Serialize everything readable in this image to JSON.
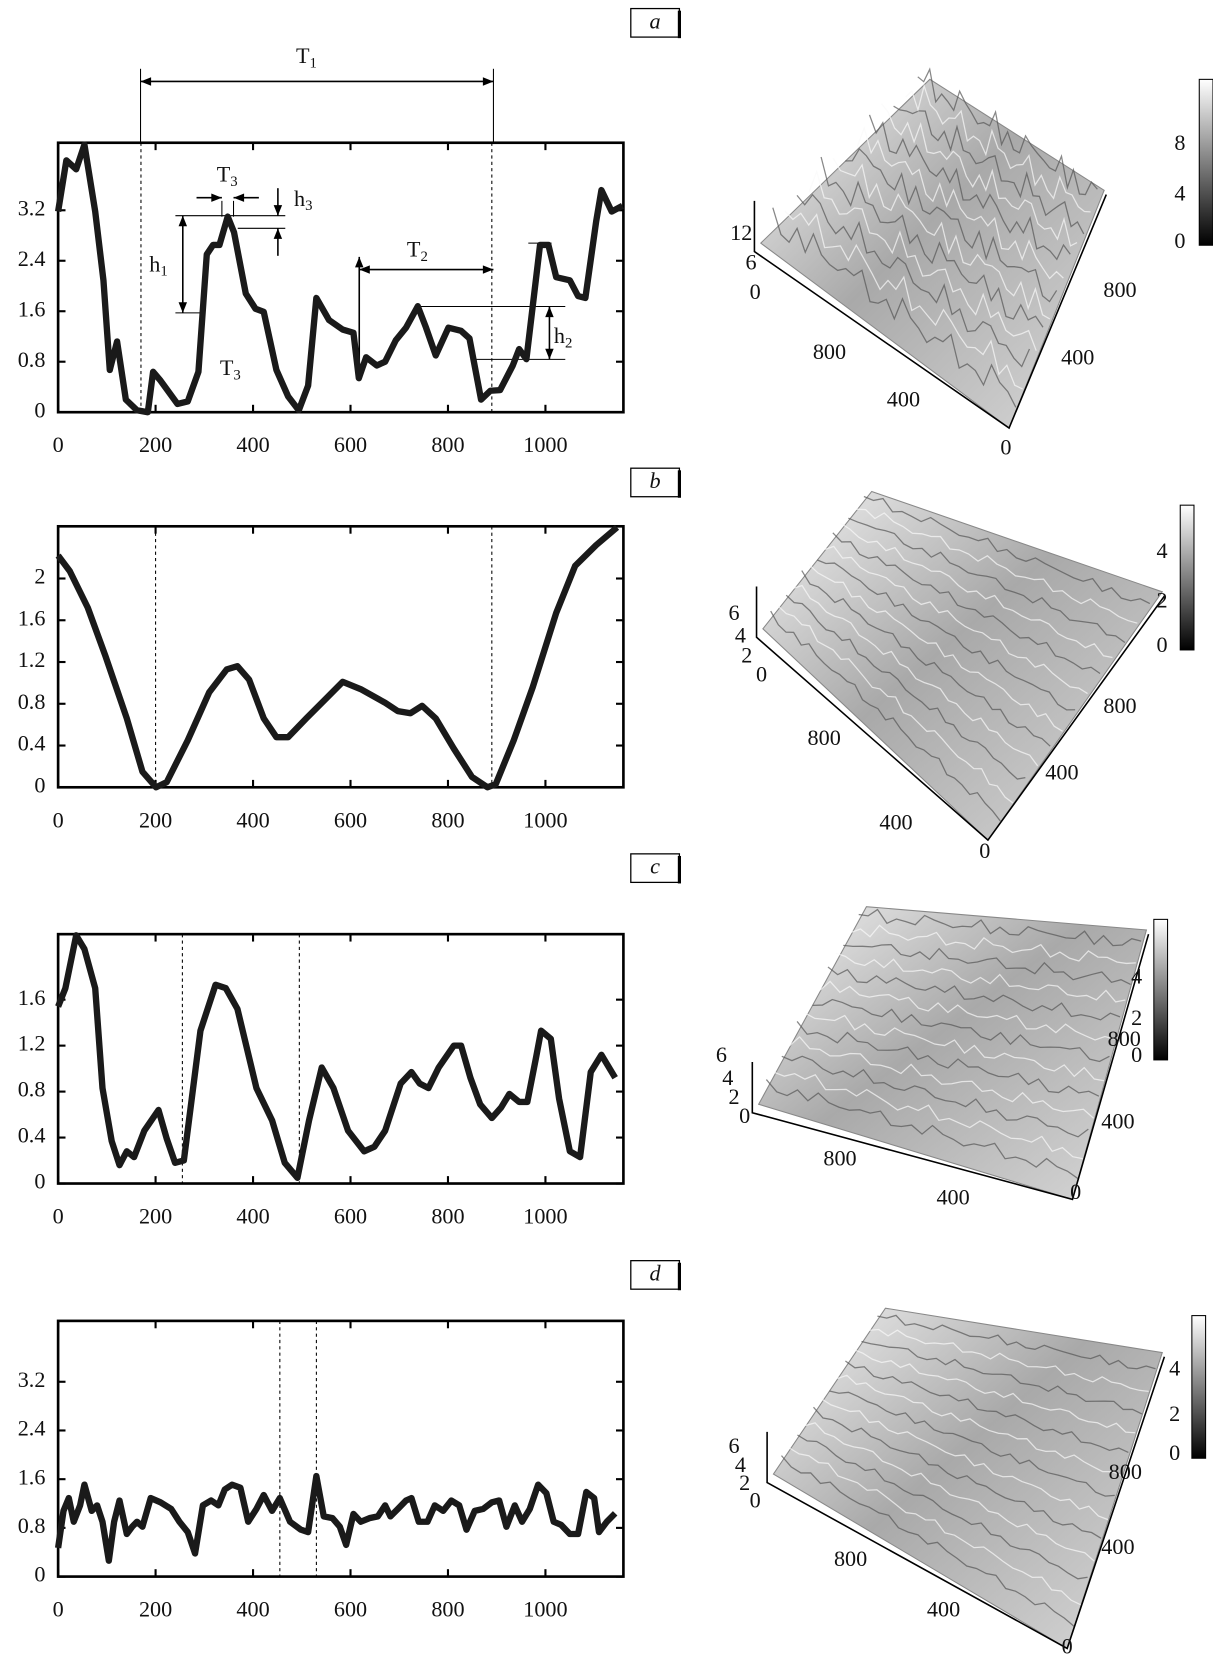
{
  "chart_data": [
    {
      "type": "line",
      "panel": "a",
      "x": [
        0,
        17,
        37,
        54,
        76,
        93,
        106,
        121,
        139,
        162,
        184,
        195,
        210,
        245,
        266,
        288,
        305,
        318,
        331,
        348,
        361,
        385,
        405,
        422,
        448,
        472,
        494,
        513,
        530,
        556,
        584,
        606,
        617,
        632,
        654,
        671,
        693,
        714,
        738,
        755,
        775,
        801,
        827,
        844,
        868,
        887,
        907,
        933,
        946,
        961,
        989,
        1006,
        1022,
        1050,
        1067,
        1082,
        1104,
        1115,
        1136,
        1158
      ],
      "values": [
        3.18,
        3.99,
        3.85,
        4.24,
        3.18,
        2.09,
        0.67,
        1.12,
        0.2,
        0.03,
        0,
        0.64,
        0.5,
        0.13,
        0.17,
        0.64,
        2.5,
        2.65,
        2.65,
        3.1,
        2.85,
        1.88,
        1.64,
        1.59,
        0.67,
        0.25,
        0.03,
        0.42,
        1.81,
        1.46,
        1.31,
        1.26,
        0.54,
        0.87,
        0.74,
        0.8,
        1.14,
        1.34,
        1.68,
        1.34,
        0.9,
        1.34,
        1.29,
        1.17,
        0.2,
        0.34,
        0.35,
        0.74,
        1.0,
        0.84,
        2.65,
        2.65,
        2.14,
        2.09,
        1.84,
        1.81,
        3.02,
        3.52,
        3.18,
        3.27
      ],
      "xlim": [
        0,
        1160
      ],
      "ylim": [
        0,
        4.27
      ],
      "xticks": [
        0,
        200,
        400,
        600,
        800,
        1000
      ],
      "yticks": [
        0,
        0.8,
        1.6,
        2.4,
        3.2
      ],
      "vlines": [
        170,
        890
      ],
      "annotations": [
        {
          "text": "T",
          "sub": "1"
        },
        {
          "text": "T",
          "sub": "3"
        },
        {
          "text": "h",
          "sub": "3"
        },
        {
          "text": "h",
          "sub": "1"
        },
        {
          "text": "T",
          "sub": "2"
        },
        {
          "text": "h",
          "sub": "2"
        },
        {
          "text": "T",
          "sub": "3"
        }
      ],
      "surface": {
        "z_ticks": [
          "12",
          "6",
          "0"
        ],
        "front_ticks": [
          "800",
          "400",
          "0"
        ],
        "side_ticks": [
          "800",
          "400"
        ],
        "colorbar_ticks": [
          "8",
          "4",
          "0"
        ]
      }
    },
    {
      "type": "line",
      "panel": "b",
      "x": [
        0,
        24,
        61,
        97,
        141,
        173,
        201,
        223,
        266,
        310,
        346,
        368,
        392,
        422,
        448,
        472,
        509,
        552,
        584,
        621,
        671,
        697,
        723,
        747,
        775,
        812,
        849,
        881,
        898,
        935,
        974,
        1022,
        1061,
        1104,
        1147
      ],
      "values": [
        2.22,
        2.07,
        1.72,
        1.26,
        0.66,
        0.15,
        0,
        0.05,
        0.45,
        0.91,
        1.13,
        1.16,
        1.03,
        0.66,
        0.48,
        0.48,
        0.66,
        0.86,
        1.01,
        0.94,
        0.81,
        0.73,
        0.71,
        0.78,
        0.66,
        0.37,
        0.1,
        0,
        0.03,
        0.45,
        0.96,
        1.67,
        2.12,
        2.32,
        2.49
      ],
      "xlim": [
        0,
        1160
      ],
      "ylim": [
        0,
        2.5
      ],
      "xticks": [
        0,
        200,
        400,
        600,
        800,
        1000
      ],
      "yticks": [
        0,
        0.4,
        0.8,
        1.2,
        1.6,
        2.0
      ],
      "vlines": [
        200,
        890
      ],
      "surface": {
        "z_ticks": [
          "6",
          "4",
          "2",
          "0"
        ],
        "front_ticks": [
          "800",
          "400",
          "0"
        ],
        "side_ticks": [
          "800",
          "400"
        ],
        "colorbar_ticks": [
          "4",
          "2",
          "0"
        ]
      }
    },
    {
      "type": "line",
      "panel": "c",
      "x": [
        0,
        15,
        37,
        54,
        76,
        91,
        110,
        126,
        141,
        156,
        177,
        206,
        223,
        240,
        258,
        292,
        323,
        344,
        368,
        407,
        439,
        465,
        491,
        515,
        541,
        565,
        595,
        628,
        649,
        671,
        703,
        725,
        742,
        760,
        781,
        812,
        827,
        846,
        866,
        890,
        909,
        926,
        946,
        963,
        981,
        991,
        1011,
        1028,
        1050,
        1071,
        1093,
        1115,
        1143
      ],
      "values": [
        1.54,
        1.7,
        2.16,
        2.04,
        1.7,
        0.83,
        0.37,
        0.16,
        0.28,
        0.23,
        0.46,
        0.64,
        0.39,
        0.18,
        0.2,
        1.33,
        1.73,
        1.7,
        1.52,
        0.83,
        0.55,
        0.18,
        0.05,
        0.55,
        1.01,
        0.83,
        0.46,
        0.28,
        0.32,
        0.46,
        0.87,
        0.97,
        0.87,
        0.83,
        1.01,
        1.2,
        1.2,
        0.92,
        0.69,
        0.57,
        0.66,
        0.78,
        0.71,
        0.71,
        1.1,
        1.33,
        1.26,
        0.74,
        0.28,
        0.23,
        0.97,
        1.12,
        0.92
      ],
      "xlim": [
        0,
        1160
      ],
      "ylim": [
        0,
        2.17
      ],
      "xticks": [
        0,
        200,
        400,
        600,
        800,
        1000
      ],
      "yticks": [
        0,
        0.4,
        0.8,
        1.2,
        1.6
      ],
      "vlines": [
        255,
        495
      ],
      "surface": {
        "z_ticks": [
          "6",
          "4",
          "2",
          "0"
        ],
        "front_ticks": [
          "800",
          "400",
          "0"
        ],
        "side_ticks": [
          "800",
          "400"
        ],
        "colorbar_ticks": [
          "4",
          "2",
          "0"
        ]
      }
    },
    {
      "type": "line",
      "panel": "d",
      "x": [
        0,
        11,
        22,
        32,
        45,
        54,
        69,
        80,
        91,
        104,
        115,
        126,
        141,
        152,
        162,
        173,
        190,
        210,
        232,
        249,
        266,
        281,
        297,
        314,
        329,
        342,
        357,
        374,
        390,
        407,
        422,
        439,
        455,
        476,
        498,
        513,
        530,
        545,
        563,
        578,
        591,
        606,
        621,
        639,
        656,
        671,
        682,
        697,
        714,
        725,
        740,
        758,
        773,
        790,
        807,
        823,
        838,
        855,
        872,
        890,
        905,
        920,
        937,
        952,
        968,
        985,
        1002,
        1017,
        1032,
        1050,
        1067,
        1084,
        1100,
        1110,
        1126,
        1143
      ],
      "values": [
        0.47,
        1.08,
        1.29,
        0.9,
        1.17,
        1.51,
        1.08,
        1.17,
        0.9,
        0.26,
        0.9,
        1.25,
        0.7,
        0.82,
        0.9,
        0.82,
        1.29,
        1.22,
        1.11,
        0.9,
        0.73,
        0.38,
        1.17,
        1.25,
        1.17,
        1.43,
        1.51,
        1.46,
        0.9,
        1.11,
        1.34,
        1.08,
        1.29,
        0.9,
        0.77,
        0.73,
        1.65,
        0.99,
        0.96,
        0.82,
        0.52,
        1.03,
        0.9,
        0.96,
        0.99,
        1.17,
        0.99,
        1.11,
        1.25,
        1.29,
        0.9,
        0.9,
        1.17,
        1.08,
        1.25,
        1.17,
        0.77,
        1.08,
        1.11,
        1.22,
        1.25,
        0.82,
        1.17,
        0.9,
        1.11,
        1.51,
        1.37,
        0.9,
        0.85,
        0.7,
        0.7,
        1.39,
        1.29,
        0.73,
        0.9,
        1.04
      ],
      "xlim": [
        0,
        1160
      ],
      "ylim": [
        0,
        4.2
      ],
      "xticks": [
        0,
        200,
        400,
        600,
        800,
        1000
      ],
      "yticks": [
        0,
        0.8,
        1.6,
        2.4,
        3.2
      ],
      "vlines": [
        455,
        530
      ],
      "surface": {
        "z_ticks": [
          "6",
          "4",
          "2",
          "0"
        ],
        "front_ticks": [
          "800",
          "400",
          "0"
        ],
        "side_ticks": [
          "800",
          "400"
        ],
        "colorbar_ticks": [
          "4",
          "2",
          "0"
        ]
      }
    }
  ]
}
